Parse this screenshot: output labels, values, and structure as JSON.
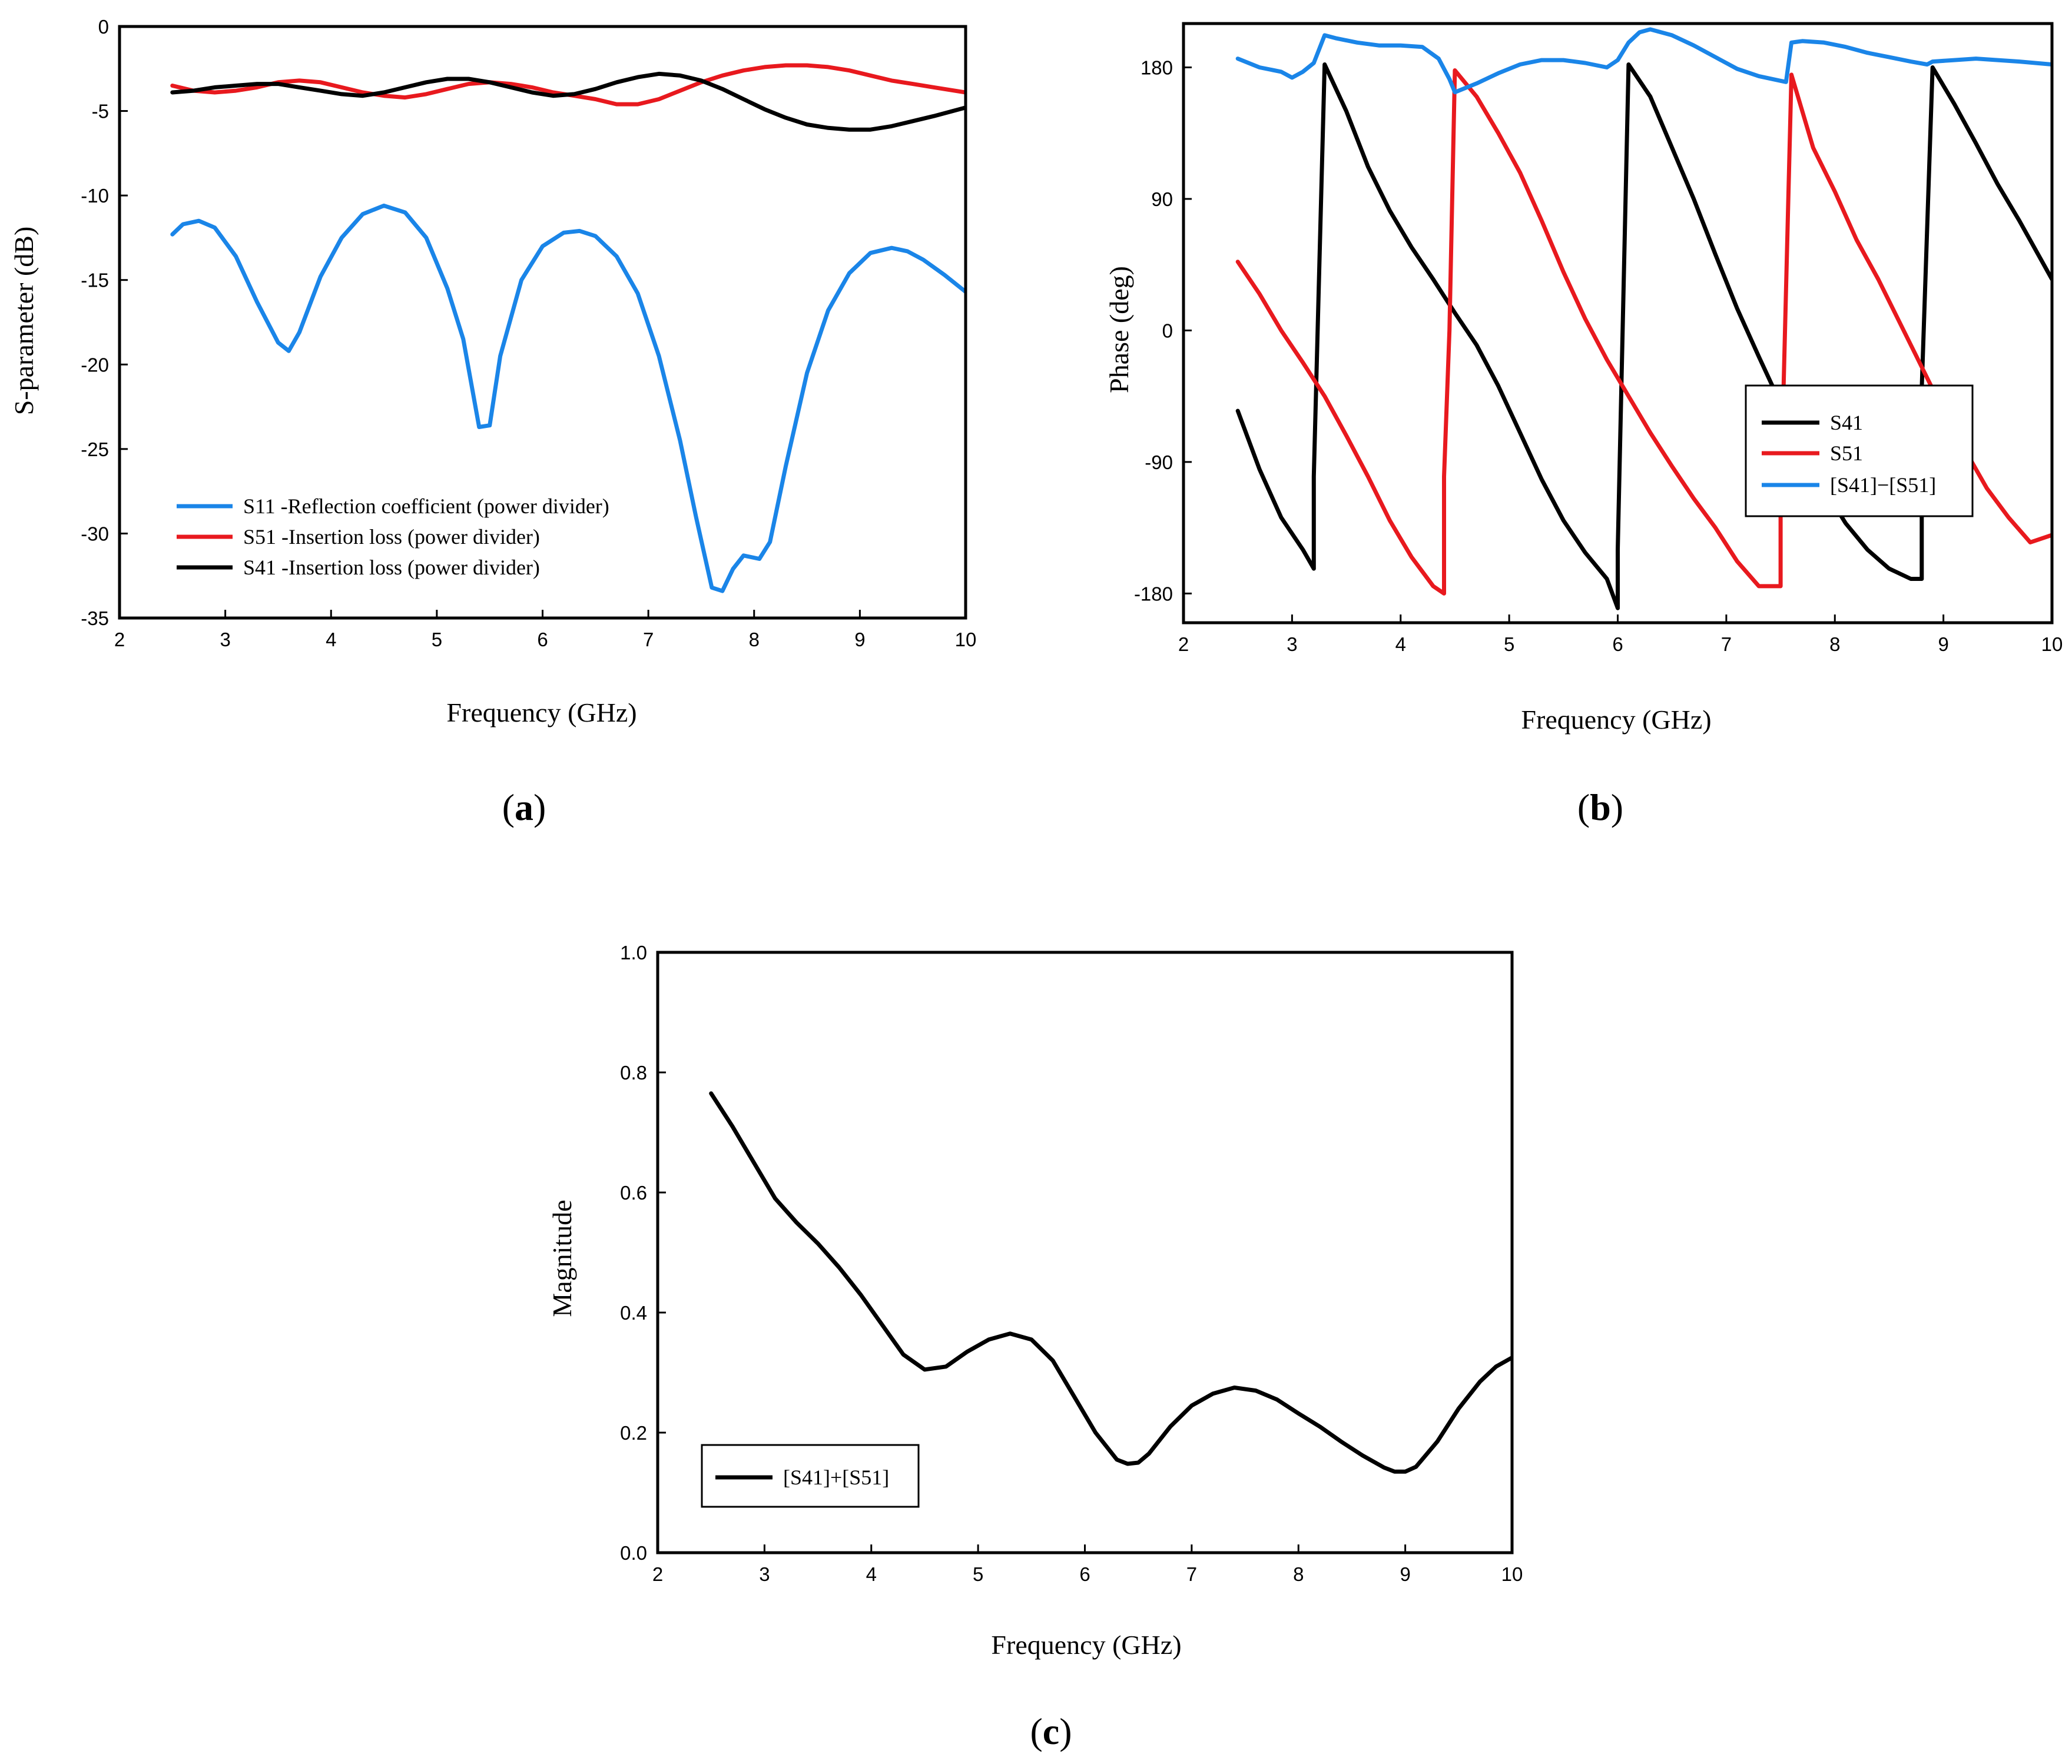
{
  "chart_data": [
    {
      "type": "line",
      "panel": "a",
      "caption": "a",
      "title": "",
      "xlabel": "Frequency (GHz)",
      "ylabel": "S-parameter (dB)",
      "xlim": [
        2,
        10
      ],
      "ylim": [
        -35,
        0
      ],
      "xticks": [
        2,
        3,
        4,
        5,
        6,
        7,
        8,
        9,
        10
      ],
      "xtick_labels": [
        "2",
        "3",
        "4",
        "5",
        "6",
        "7",
        "8",
        "9",
        "10"
      ],
      "yticks": [
        0,
        -5,
        -10,
        -15,
        -20,
        -25,
        -30,
        -35
      ],
      "ytick_labels": [
        "0",
        "-5",
        "-10",
        "-15",
        "-20",
        "-25",
        "-30",
        "-35"
      ],
      "grid": false,
      "legend_position": "bottom-left",
      "series": [
        {
          "name": "S11 -Reflection coefficient (power divider)",
          "color": "#1a85e8",
          "x": [
            2.5,
            2.6,
            2.75,
            2.9,
            3.1,
            3.3,
            3.5,
            3.6,
            3.7,
            3.9,
            4.1,
            4.3,
            4.5,
            4.7,
            4.9,
            5.1,
            5.25,
            5.4,
            5.5,
            5.6,
            5.8,
            6.0,
            6.2,
            6.35,
            6.5,
            6.7,
            6.9,
            7.1,
            7.3,
            7.45,
            7.6,
            7.7,
            7.8,
            7.9,
            8.05,
            8.15,
            8.3,
            8.5,
            8.7,
            8.9,
            9.1,
            9.3,
            9.45,
            9.6,
            9.8,
            10.0
          ],
          "y": [
            -12.3,
            -11.7,
            -11.5,
            -11.9,
            -13.6,
            -16.3,
            -18.7,
            -19.2,
            -18.1,
            -14.8,
            -12.5,
            -11.1,
            -10.6,
            -11.0,
            -12.5,
            -15.5,
            -18.5,
            -23.7,
            -23.6,
            -19.5,
            -15.0,
            -13.0,
            -12.2,
            -12.1,
            -12.4,
            -13.6,
            -15.8,
            -19.5,
            -24.5,
            -29.0,
            -33.2,
            -33.4,
            -32.1,
            -31.3,
            -31.5,
            -30.5,
            -26.0,
            -20.5,
            -16.8,
            -14.6,
            -13.4,
            -13.1,
            -13.3,
            -13.8,
            -14.7,
            -15.7
          ]
        },
        {
          "name": "S51 -Insertion loss (power divider)",
          "color": "#e8191e",
          "x": [
            2.5,
            2.7,
            2.9,
            3.1,
            3.3,
            3.5,
            3.7,
            3.9,
            4.1,
            4.3,
            4.5,
            4.7,
            4.9,
            5.1,
            5.3,
            5.5,
            5.7,
            5.9,
            6.1,
            6.3,
            6.5,
            6.7,
            6.9,
            7.1,
            7.3,
            7.5,
            7.7,
            7.9,
            8.1,
            8.3,
            8.5,
            8.7,
            8.9,
            9.1,
            9.3,
            9.5,
            9.7,
            10.0
          ],
          "y": [
            -3.5,
            -3.8,
            -3.9,
            -3.8,
            -3.6,
            -3.3,
            -3.2,
            -3.3,
            -3.6,
            -3.9,
            -4.1,
            -4.2,
            -4.0,
            -3.7,
            -3.4,
            -3.3,
            -3.4,
            -3.6,
            -3.9,
            -4.1,
            -4.3,
            -4.6,
            -4.6,
            -4.3,
            -3.8,
            -3.3,
            -2.9,
            -2.6,
            -2.4,
            -2.3,
            -2.3,
            -2.4,
            -2.6,
            -2.9,
            -3.2,
            -3.4,
            -3.6,
            -3.9
          ]
        },
        {
          "name": "S41 -Insertion loss (power divider)",
          "color": "#000000",
          "x": [
            2.5,
            2.7,
            2.9,
            3.1,
            3.3,
            3.5,
            3.7,
            3.9,
            4.1,
            4.3,
            4.5,
            4.7,
            4.9,
            5.1,
            5.3,
            5.5,
            5.7,
            5.9,
            6.1,
            6.3,
            6.5,
            6.7,
            6.9,
            7.1,
            7.3,
            7.5,
            7.7,
            7.9,
            8.1,
            8.3,
            8.5,
            8.7,
            8.9,
            9.1,
            9.3,
            9.5,
            9.7,
            10.0
          ],
          "y": [
            -3.9,
            -3.8,
            -3.6,
            -3.5,
            -3.4,
            -3.4,
            -3.6,
            -3.8,
            -4.0,
            -4.1,
            -3.9,
            -3.6,
            -3.3,
            -3.1,
            -3.1,
            -3.3,
            -3.6,
            -3.9,
            -4.1,
            -4.0,
            -3.7,
            -3.3,
            -3.0,
            -2.8,
            -2.9,
            -3.2,
            -3.7,
            -4.3,
            -4.9,
            -5.4,
            -5.8,
            -6.0,
            -6.1,
            -6.1,
            -5.9,
            -5.6,
            -5.3,
            -4.8
          ]
        }
      ]
    },
    {
      "type": "line",
      "panel": "b",
      "caption": "b",
      "title": "",
      "xlabel": "Frequency (GHz)",
      "ylabel": "Phase (deg)",
      "xlim": [
        2,
        10
      ],
      "ylim": [
        -200,
        210
      ],
      "xticks": [
        2,
        3,
        4,
        5,
        6,
        7,
        8,
        9,
        10
      ],
      "xtick_labels": [
        "2",
        "3",
        "4",
        "5",
        "6",
        "7",
        "8",
        "9",
        "10"
      ],
      "yticks": [
        180,
        90,
        0,
        -90,
        -180
      ],
      "ytick_labels": [
        "180",
        "90",
        "0",
        "-90",
        "-180"
      ],
      "grid": false,
      "legend_position": "right",
      "series": [
        {
          "name": "S41",
          "color": "#000000",
          "x": [
            2.5,
            2.7,
            2.9,
            3.1,
            3.2,
            3.2,
            3.3,
            3.5,
            3.7,
            3.9,
            4.1,
            4.3,
            4.5,
            4.7,
            4.9,
            5.1,
            5.3,
            5.5,
            5.7,
            5.9,
            6.0,
            6.0,
            6.1,
            6.3,
            6.5,
            6.7,
            6.9,
            7.1,
            7.3,
            7.5,
            7.7,
            7.9,
            8.1,
            8.3,
            8.5,
            8.7,
            8.8,
            8.8,
            8.9,
            9.1,
            9.3,
            9.5,
            9.7,
            10.0
          ],
          "y": [
            -55,
            -95,
            -128,
            -150,
            -163,
            -100,
            182,
            150,
            112,
            82,
            57,
            35,
            12,
            -10,
            -38,
            -70,
            -102,
            -130,
            -152,
            -170,
            -190,
            -150,
            182,
            160,
            125,
            90,
            52,
            15,
            -18,
            -50,
            -80,
            -108,
            -132,
            -150,
            -163,
            -170,
            -170,
            -40,
            180,
            155,
            128,
            100,
            75,
            35
          ]
        },
        {
          "name": "S51",
          "color": "#e8191e",
          "x": [
            2.5,
            2.7,
            2.9,
            3.1,
            3.3,
            3.5,
            3.7,
            3.9,
            4.1,
            4.3,
            4.4,
            4.4,
            4.45,
            4.5,
            4.7,
            4.9,
            5.1,
            5.3,
            5.5,
            5.7,
            5.9,
            6.1,
            6.3,
            6.5,
            6.7,
            6.9,
            7.1,
            7.3,
            7.5,
            7.5,
            7.6,
            7.8,
            8.0,
            8.2,
            8.4,
            8.6,
            8.8,
            9.0,
            9.2,
            9.4,
            9.6,
            9.8,
            10.0
          ],
          "y": [
            47,
            25,
            0,
            -22,
            -45,
            -72,
            -100,
            -130,
            -155,
            -175,
            -180,
            -100,
            0,
            178,
            160,
            135,
            108,
            75,
            40,
            8,
            -20,
            -45,
            -70,
            -93,
            -115,
            -135,
            -158,
            -175,
            -175,
            -120,
            175,
            125,
            95,
            62,
            35,
            5,
            -25,
            -55,
            -82,
            -108,
            -128,
            -145,
            -140
          ]
        },
        {
          "name": "[S41]−[S51]",
          "color": "#1a85e8",
          "x": [
            2.5,
            2.7,
            2.9,
            3.0,
            3.1,
            3.2,
            3.3,
            3.4,
            3.6,
            3.8,
            4.0,
            4.2,
            4.35,
            4.45,
            4.5,
            4.7,
            4.9,
            5.1,
            5.3,
            5.5,
            5.7,
            5.9,
            6.0,
            6.1,
            6.2,
            6.3,
            6.5,
            6.7,
            6.9,
            7.1,
            7.3,
            7.55,
            7.6,
            7.7,
            7.9,
            8.1,
            8.3,
            8.5,
            8.7,
            8.85,
            8.9,
            9.1,
            9.3,
            9.5,
            9.7,
            10.0
          ],
          "y": [
            186,
            180,
            177,
            173,
            177,
            183,
            202,
            200,
            197,
            195,
            195,
            194,
            186,
            172,
            163,
            169,
            176,
            182,
            185,
            185,
            183,
            180,
            185,
            197,
            204,
            206,
            202,
            195,
            187,
            179,
            174,
            170,
            197,
            198,
            197,
            194,
            190,
            187,
            184,
            182,
            184,
            185,
            186,
            185,
            184,
            182
          ]
        }
      ]
    },
    {
      "type": "line",
      "panel": "c",
      "caption": "c",
      "title": "",
      "xlabel": "Frequency (GHz)",
      "ylabel": "Magnitude",
      "xlim": [
        2,
        10
      ],
      "ylim": [
        0.0,
        1.0
      ],
      "xticks": [
        2,
        3,
        4,
        5,
        6,
        7,
        8,
        9,
        10
      ],
      "xtick_labels": [
        "2",
        "3",
        "4",
        "5",
        "6",
        "7",
        "8",
        "9",
        "10"
      ],
      "yticks": [
        0.0,
        0.2,
        0.4,
        0.6,
        0.8,
        1.0
      ],
      "ytick_labels": [
        "0.0",
        "0.2",
        "0.4",
        "0.6",
        "0.8",
        "1.0"
      ],
      "grid": false,
      "legend_position": "bottom-left",
      "series": [
        {
          "name": "[S41]+[S51]",
          "color": "#000000",
          "x": [
            2.5,
            2.7,
            2.9,
            3.1,
            3.3,
            3.5,
            3.7,
            3.9,
            4.1,
            4.3,
            4.5,
            4.7,
            4.9,
            5.1,
            5.3,
            5.5,
            5.7,
            5.9,
            6.1,
            6.3,
            6.4,
            6.5,
            6.6,
            6.8,
            7.0,
            7.2,
            7.4,
            7.6,
            7.8,
            8.0,
            8.2,
            8.4,
            8.6,
            8.8,
            8.9,
            9.0,
            9.1,
            9.3,
            9.5,
            9.7,
            9.85,
            10.0
          ],
          "y": [
            0.765,
            0.71,
            0.65,
            0.59,
            0.55,
            0.515,
            0.475,
            0.43,
            0.38,
            0.33,
            0.305,
            0.31,
            0.335,
            0.355,
            0.365,
            0.355,
            0.32,
            0.26,
            0.2,
            0.155,
            0.148,
            0.15,
            0.165,
            0.21,
            0.245,
            0.265,
            0.275,
            0.27,
            0.255,
            0.232,
            0.21,
            0.185,
            0.162,
            0.142,
            0.135,
            0.135,
            0.143,
            0.185,
            0.24,
            0.285,
            0.31,
            0.325
          ]
        }
      ]
    }
  ]
}
